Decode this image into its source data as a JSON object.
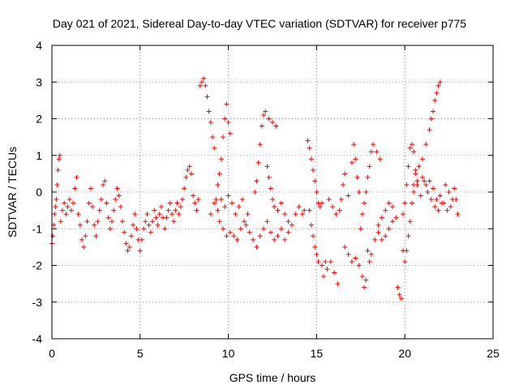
{
  "chart_data": {
    "type": "scatter",
    "title": "Day 021 of 2021, Sidereal Day-to-day VTEC variation (SDTVAR) for receiver p775",
    "xlabel": "GPS time / hours",
    "ylabel": "SDTVAR / TECUs",
    "xlim": [
      0,
      25
    ],
    "ylim": [
      -4,
      4
    ],
    "xticks": [
      0,
      5,
      10,
      15,
      20,
      25
    ],
    "yticks": [
      -4,
      -3,
      -2,
      -1,
      0,
      1,
      2,
      3,
      4
    ],
    "grid": true,
    "marker": "+",
    "series": [
      {
        "name": "SDTVAR",
        "color": "#ff0000",
        "points": [
          [
            0.0,
            -1.4
          ],
          [
            0.05,
            -1.2
          ],
          [
            0.1,
            -0.9
          ],
          [
            0.15,
            -0.6
          ],
          [
            0.2,
            -0.4
          ],
          [
            0.25,
            -0.2
          ],
          [
            0.3,
            0.2
          ],
          [
            0.35,
            0.6
          ],
          [
            0.4,
            0.9
          ],
          [
            0.45,
            1.0
          ],
          [
            0.5,
            -0.8
          ],
          [
            0.6,
            -0.5
          ],
          [
            0.7,
            -0.3
          ],
          [
            0.8,
            -0.6
          ],
          [
            0.9,
            -0.4
          ],
          [
            1.0,
            -0.2
          ],
          [
            1.1,
            -0.5
          ],
          [
            1.2,
            -0.3
          ],
          [
            1.3,
            0.1
          ],
          [
            1.4,
            0.4
          ],
          [
            1.5,
            -0.6
          ],
          [
            1.6,
            -0.9
          ],
          [
            1.7,
            -1.3
          ],
          [
            1.8,
            -1.5
          ],
          [
            1.9,
            -1.2
          ],
          [
            2.0,
            -0.8
          ],
          [
            2.1,
            -0.3
          ],
          [
            2.2,
            0.1
          ],
          [
            2.3,
            -0.4
          ],
          [
            2.4,
            -0.9
          ],
          [
            2.5,
            -1.2
          ],
          [
            2.6,
            -0.8
          ],
          [
            2.7,
            -0.5
          ],
          [
            2.8,
            -0.2
          ],
          [
            2.9,
            0.2
          ],
          [
            3.0,
            0.3
          ],
          [
            3.1,
            -0.3
          ],
          [
            3.2,
            -0.7
          ],
          [
            3.3,
            -1.0
          ],
          [
            3.4,
            -0.8
          ],
          [
            3.5,
            -0.5
          ],
          [
            3.6,
            -0.2
          ],
          [
            3.7,
            0.1
          ],
          [
            3.8,
            -0.1
          ],
          [
            3.9,
            -0.4
          ],
          [
            4.0,
            -0.8
          ],
          [
            4.1,
            -1.1
          ],
          [
            4.2,
            -1.4
          ],
          [
            4.3,
            -1.6
          ],
          [
            4.4,
            -1.5
          ],
          [
            4.5,
            -1.2
          ],
          [
            4.6,
            -0.9
          ],
          [
            4.7,
            -0.6
          ],
          [
            4.8,
            -1.0
          ],
          [
            4.9,
            -1.3
          ],
          [
            5.0,
            -1.6
          ],
          [
            5.1,
            -1.3
          ],
          [
            5.2,
            -1.0
          ],
          [
            5.3,
            -0.8
          ],
          [
            5.4,
            -0.6
          ],
          [
            5.5,
            -0.9
          ],
          [
            5.6,
            -1.1
          ],
          [
            5.7,
            -0.8
          ],
          [
            5.8,
            -0.5
          ],
          [
            5.9,
            -0.7
          ],
          [
            6.0,
            -0.9
          ],
          [
            6.1,
            -0.6
          ],
          [
            6.2,
            -0.4
          ],
          [
            6.3,
            -0.7
          ],
          [
            6.4,
            -1.0
          ],
          [
            6.5,
            -0.7
          ],
          [
            6.6,
            -0.5
          ],
          [
            6.7,
            -0.3
          ],
          [
            6.8,
            -0.6
          ],
          [
            6.9,
            -0.8
          ],
          [
            7.0,
            -0.5
          ],
          [
            7.1,
            -0.3
          ],
          [
            7.2,
            -0.6
          ],
          [
            7.3,
            -0.4
          ],
          [
            7.4,
            -0.2
          ],
          [
            7.5,
            0.1
          ],
          [
            7.6,
            0.4
          ],
          [
            7.7,
            0.6
          ],
          [
            7.8,
            0.7
          ],
          [
            7.9,
            0.5
          ],
          [
            8.0,
            -0.1
          ],
          [
            8.1,
            -0.3
          ],
          [
            8.2,
            -0.5
          ],
          [
            8.3,
            -0.2
          ],
          [
            8.4,
            2.9
          ],
          [
            8.5,
            3.0
          ],
          [
            8.6,
            3.1
          ],
          [
            8.7,
            2.9
          ],
          [
            8.8,
            2.6
          ],
          [
            8.9,
            2.2
          ],
          [
            9.0,
            1.9
          ],
          [
            9.1,
            1.5
          ],
          [
            9.2,
            1.2
          ],
          [
            9.3,
            -0.2
          ],
          [
            9.4,
            0.2
          ],
          [
            9.5,
            0.5
          ],
          [
            9.6,
            0.9
          ],
          [
            9.7,
            1.5
          ],
          [
            9.8,
            2.0
          ],
          [
            9.9,
            2.4
          ],
          [
            10.0,
            1.9
          ],
          [
            10.1,
            1.6
          ],
          [
            9.0,
            -0.6
          ],
          [
            9.2,
            -0.3
          ],
          [
            9.4,
            -0.5
          ],
          [
            9.6,
            -0.2
          ],
          [
            9.8,
            -0.4
          ],
          [
            10.0,
            -0.1
          ],
          [
            10.2,
            -0.3
          ],
          [
            10.4,
            -0.6
          ],
          [
            10.6,
            -0.4
          ],
          [
            10.8,
            -0.2
          ],
          [
            9.5,
            -0.8
          ],
          [
            9.7,
            -1.0
          ],
          [
            9.9,
            -1.2
          ],
          [
            10.1,
            -1.1
          ],
          [
            10.3,
            -1.2
          ],
          [
            10.5,
            -1.3
          ],
          [
            10.7,
            -1.0
          ],
          [
            10.9,
            -0.8
          ],
          [
            11.1,
            -0.6
          ],
          [
            11.0,
            -0.9
          ],
          [
            11.2,
            -1.1
          ],
          [
            11.4,
            -1.3
          ],
          [
            11.6,
            -1.5
          ],
          [
            11.8,
            -1.2
          ],
          [
            12.0,
            -1.0
          ],
          [
            12.2,
            -0.8
          ],
          [
            12.4,
            -1.1
          ],
          [
            12.6,
            -1.3
          ],
          [
            11.5,
            0.0
          ],
          [
            11.6,
            0.3
          ],
          [
            11.7,
            0.8
          ],
          [
            11.8,
            1.3
          ],
          [
            11.9,
            1.8
          ],
          [
            12.0,
            2.1
          ],
          [
            12.1,
            2.2
          ],
          [
            12.3,
            2.0
          ],
          [
            12.5,
            1.9
          ],
          [
            12.7,
            1.8
          ],
          [
            12.2,
            0.7
          ],
          [
            12.3,
            0.4
          ],
          [
            12.4,
            0.1
          ],
          [
            12.5,
            -0.2
          ],
          [
            12.6,
            -0.4
          ],
          [
            12.8,
            -0.5
          ],
          [
            13.0,
            -0.3
          ],
          [
            13.2,
            -0.6
          ],
          [
            13.4,
            -0.8
          ],
          [
            12.8,
            -1.2
          ],
          [
            13.0,
            -1.0
          ],
          [
            13.2,
            -1.3
          ],
          [
            13.4,
            -1.1
          ],
          [
            13.6,
            -0.9
          ],
          [
            13.8,
            -0.6
          ],
          [
            14.0,
            -0.4
          ],
          [
            14.2,
            -0.6
          ],
          [
            14.3,
            -0.5
          ],
          [
            14.5,
            1.4
          ],
          [
            14.6,
            1.2
          ],
          [
            14.7,
            0.9
          ],
          [
            14.8,
            0.6
          ],
          [
            14.9,
            0.3
          ],
          [
            15.0,
            0.0
          ],
          [
            15.1,
            -0.3
          ],
          [
            15.2,
            -0.4
          ],
          [
            15.3,
            -0.3
          ],
          [
            14.6,
            -0.5
          ],
          [
            14.7,
            -0.9
          ],
          [
            14.8,
            -1.2
          ],
          [
            14.9,
            -1.5
          ],
          [
            15.0,
            -1.7
          ],
          [
            15.1,
            -1.9
          ],
          [
            15.3,
            -2.0
          ],
          [
            15.5,
            -1.9
          ],
          [
            15.4,
            -2.3
          ],
          [
            15.6,
            -2.1
          ],
          [
            15.8,
            -1.9
          ],
          [
            16.0,
            -2.2
          ],
          [
            16.2,
            -2.5
          ],
          [
            15.7,
            -0.2
          ],
          [
            15.9,
            -0.4
          ],
          [
            16.1,
            -0.6
          ],
          [
            16.3,
            -0.5
          ],
          [
            16.4,
            -0.2
          ],
          [
            16.5,
            0.2
          ],
          [
            16.6,
            0.5
          ],
          [
            16.8,
            -0.1
          ],
          [
            17.0,
            0.8
          ],
          [
            17.1,
            1.3
          ],
          [
            17.2,
            0.9
          ],
          [
            17.3,
            0.4
          ],
          [
            17.4,
            0.0
          ],
          [
            16.6,
            -1.5
          ],
          [
            16.8,
            -1.7
          ],
          [
            17.0,
            -1.9
          ],
          [
            17.2,
            -1.8
          ],
          [
            17.4,
            -2.0
          ],
          [
            17.6,
            -2.3
          ],
          [
            17.7,
            -2.6
          ],
          [
            17.8,
            -2.4
          ],
          [
            17.5,
            -1.0
          ],
          [
            17.6,
            -0.6
          ],
          [
            17.7,
            -0.3
          ],
          [
            17.8,
            0.0
          ],
          [
            17.9,
            0.4
          ],
          [
            18.0,
            0.7
          ],
          [
            18.1,
            1.1
          ],
          [
            18.2,
            1.3
          ],
          [
            18.4,
            1.1
          ],
          [
            18.6,
            0.9
          ],
          [
            17.9,
            -1.6
          ],
          [
            18.0,
            -1.9
          ],
          [
            18.1,
            -1.7
          ],
          [
            18.3,
            -1.3
          ],
          [
            18.5,
            -1.1
          ],
          [
            18.7,
            -1.3
          ],
          [
            18.9,
            -1.2
          ],
          [
            19.1,
            -1.0
          ],
          [
            19.3,
            -0.8
          ],
          [
            18.5,
            -0.9
          ],
          [
            18.7,
            -0.7
          ],
          [
            18.9,
            -0.5
          ],
          [
            19.1,
            -0.3
          ],
          [
            19.3,
            -0.4
          ],
          [
            19.5,
            -0.7
          ],
          [
            19.6,
            -2.6
          ],
          [
            19.7,
            -2.8
          ],
          [
            19.8,
            -2.9
          ],
          [
            19.9,
            -0.6
          ],
          [
            20.0,
            -0.3
          ],
          [
            20.1,
            0.2
          ],
          [
            20.2,
            0.7
          ],
          [
            20.3,
            1.2
          ],
          [
            20.4,
            1.3
          ],
          [
            20.5,
            1.1
          ],
          [
            20.6,
            0.6
          ],
          [
            20.7,
            0.3
          ],
          [
            19.9,
            -1.6
          ],
          [
            20.0,
            -1.9
          ],
          [
            20.1,
            -1.6
          ],
          [
            20.2,
            -1.2
          ],
          [
            20.3,
            -0.8
          ],
          [
            20.4,
            -0.3
          ],
          [
            20.5,
            0.2
          ],
          [
            20.6,
            0.5
          ],
          [
            20.8,
            0.7
          ],
          [
            21.0,
            0.9
          ],
          [
            21.2,
            1.3
          ],
          [
            21.4,
            1.7
          ],
          [
            21.5,
            2.0
          ],
          [
            21.6,
            2.2
          ],
          [
            21.7,
            2.5
          ],
          [
            21.8,
            2.7
          ],
          [
            21.9,
            2.9
          ],
          [
            22.0,
            3.0
          ],
          [
            20.5,
            0.0
          ],
          [
            20.7,
            0.2
          ],
          [
            20.9,
            -0.1
          ],
          [
            21.1,
            0.3
          ],
          [
            21.3,
            0.0
          ],
          [
            21.5,
            -0.2
          ],
          [
            21.7,
            -0.4
          ],
          [
            21.9,
            -0.5
          ],
          [
            22.1,
            -0.3
          ],
          [
            21.0,
            0.4
          ],
          [
            21.2,
            0.2
          ],
          [
            21.4,
            0.3
          ],
          [
            21.6,
            0.1
          ],
          [
            21.8,
            -0.2
          ],
          [
            22.0,
            -0.1
          ],
          [
            22.2,
            -0.3
          ],
          [
            22.4,
            -0.5
          ],
          [
            22.6,
            -0.4
          ],
          [
            22.3,
            0.2
          ],
          [
            22.5,
            0.0
          ],
          [
            22.7,
            -0.2
          ],
          [
            22.8,
            0.1
          ],
          [
            22.9,
            -0.2
          ],
          [
            23.0,
            -0.6
          ]
        ]
      }
    ]
  }
}
